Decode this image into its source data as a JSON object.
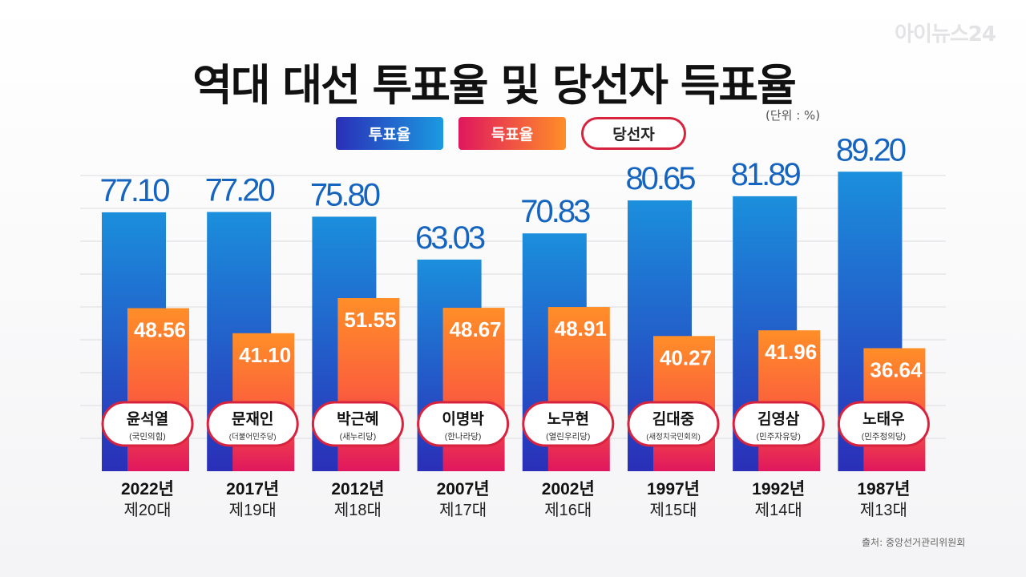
{
  "watermark": "아이뉴스24",
  "title": "역대 대선 투표율 및 당선자 득표율",
  "unit": "(단위 : %)",
  "legend": {
    "turnout": "투표율",
    "vote_share": "득표율",
    "winner": "당선자"
  },
  "source": "출처: 중앙선거관리위원회",
  "colors": {
    "turnout_top": "#1b8fdc",
    "turnout_bottom": "#2a2fb8",
    "vote_top": "#ff8e28",
    "vote_bottom": "#e0175e",
    "winner_border": "#d8233f",
    "turnout_label": "#1565c0"
  },
  "chart_data": {
    "type": "bar",
    "categories": [
      "2022년",
      "2017년",
      "2012년",
      "2007년",
      "2002년",
      "1997년",
      "1992년",
      "1987년"
    ],
    "subcategories": [
      "제20대",
      "제19대",
      "제18대",
      "제17대",
      "제16대",
      "제15대",
      "제14대",
      "제13대"
    ],
    "series": [
      {
        "name": "투표율",
        "values": [
          77.1,
          77.2,
          75.8,
          63.03,
          70.83,
          80.65,
          81.89,
          89.2
        ]
      },
      {
        "name": "득표율",
        "values": [
          48.56,
          41.1,
          51.55,
          48.67,
          48.91,
          40.27,
          41.96,
          36.64
        ]
      }
    ],
    "winners": [
      {
        "name": "윤석열",
        "party": "(국민의힘)"
      },
      {
        "name": "문재인",
        "party": "(더불어민주당)"
      },
      {
        "name": "박근혜",
        "party": "(새누리당)"
      },
      {
        "name": "이명박",
        "party": "(한나라당)"
      },
      {
        "name": "노무현",
        "party": "(열린우리당)"
      },
      {
        "name": "김대중",
        "party": "(새정치국민회의)"
      },
      {
        "name": "김영삼",
        "party": "(민주자유당)"
      },
      {
        "name": "노태우",
        "party": "(민주정의당)"
      }
    ],
    "value_labels": {
      "turnout": [
        "77.10",
        "77.20",
        "75.80",
        "63.03",
        "70.83",
        "80.65",
        "81.89",
        "89.20"
      ],
      "vote_share": [
        "48.56",
        "41.10",
        "51.55",
        "48.67",
        "48.91",
        "40.27",
        "41.96",
        "36.64"
      ]
    },
    "title": "역대 대선 투표율 및 당선자 득표율",
    "xlabel": "",
    "ylabel": "",
    "ylim": [
      0,
      100
    ],
    "grid": true,
    "legend_position": "top-center"
  }
}
